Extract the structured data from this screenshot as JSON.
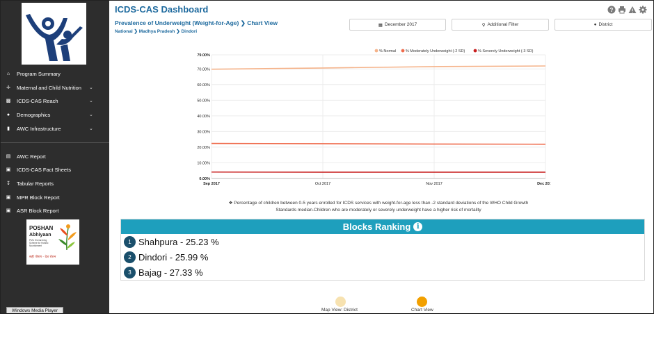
{
  "app": {
    "title": "ICDS-CAS Dashboard"
  },
  "header_icons": [
    "help-icon",
    "print-icon",
    "alert-icon",
    "settings-icon"
  ],
  "page": {
    "heading": "Prevalence of Underweight (Weight-for-Age)",
    "heading_suffix": "Chart View",
    "breadcrumb": [
      "National",
      "Madhya Pradesh",
      "Dindori"
    ]
  },
  "filters": {
    "month": "December 2017",
    "additional": "Additional Filter",
    "location": "District"
  },
  "sidebar": {
    "items": [
      {
        "label": "Program Summary",
        "icon": "home-icon",
        "has_submenu": false
      },
      {
        "label": "Maternal and Child Nutrition",
        "icon": "child-icon",
        "has_submenu": true
      },
      {
        "label": "ICDS-CAS Reach",
        "icon": "bar-chart-icon",
        "has_submenu": true
      },
      {
        "label": "Demographics",
        "icon": "people-icon",
        "has_submenu": true
      },
      {
        "label": "AWC Infrastructure",
        "icon": "building-icon",
        "has_submenu": true
      }
    ],
    "reports": [
      {
        "label": "AWC Report",
        "icon": "report-icon"
      },
      {
        "label": "ICDS-CAS Fact Sheets",
        "icon": "document-icon"
      },
      {
        "label": "Tabular Reports",
        "icon": "download-icon"
      },
      {
        "label": "MPR Block Report",
        "icon": "document-icon"
      },
      {
        "label": "ASR Block Report",
        "icon": "document-icon"
      }
    ],
    "poshan": {
      "title": "POSHAN",
      "subtitle": "Abhiyaan",
      "tagline": "PM's Overarching Scheme for Holistic Nourishment",
      "hindi": "सही पोषण - देश रोशन"
    },
    "taskbar_button": "Windows Media Player"
  },
  "chart_data": {
    "type": "line",
    "x": [
      "Sep 2017",
      "Oct 2017",
      "Nov 2017",
      "Dec 2017"
    ],
    "ylim": [
      0,
      79
    ],
    "y_ticks": [
      "0.00%",
      "10.00%",
      "20.00%",
      "30.00%",
      "40.00%",
      "50.00%",
      "60.00%",
      "70.00%",
      "79.00%"
    ],
    "y_tick_values": [
      0,
      10,
      20,
      30,
      40,
      50,
      60,
      70,
      79
    ],
    "legend": "top-right",
    "series": [
      {
        "name": "% Normal",
        "color": "#f5b38a",
        "values": [
          69.8,
          70.6,
          71.5,
          71.9
        ]
      },
      {
        "name": "% Moderately Underweight (-2 SD)",
        "color": "#ef6b4c",
        "values": [
          22.4,
          22.2,
          22.0,
          21.9
        ]
      },
      {
        "name": "% Severely Underweight (-3 SD)",
        "color": "#c81e1e",
        "values": [
          4.1,
          4.0,
          4.0,
          4.0
        ]
      }
    ]
  },
  "chart_note": "Percentage of children between 0-5 years enrolled for ICDS services with weight-for-age less than -2 standard deviations of the WHO Child Growth Standards median.Children who are moderately or severely underweight have a higher risk of mortality",
  "ranking": {
    "title": "Blocks Ranking",
    "rows": [
      {
        "rank": "1",
        "text": "Shahpura - 25.23 %"
      },
      {
        "rank": "2",
        "text": "Dindori - 25.99 %"
      },
      {
        "rank": "3",
        "text": "Bajag - 27.33 %"
      }
    ]
  },
  "views": {
    "map": {
      "label": "Map View: District",
      "color": "#f7e2b0"
    },
    "chart": {
      "label": "Chart View",
      "color": "#f2a000"
    }
  }
}
